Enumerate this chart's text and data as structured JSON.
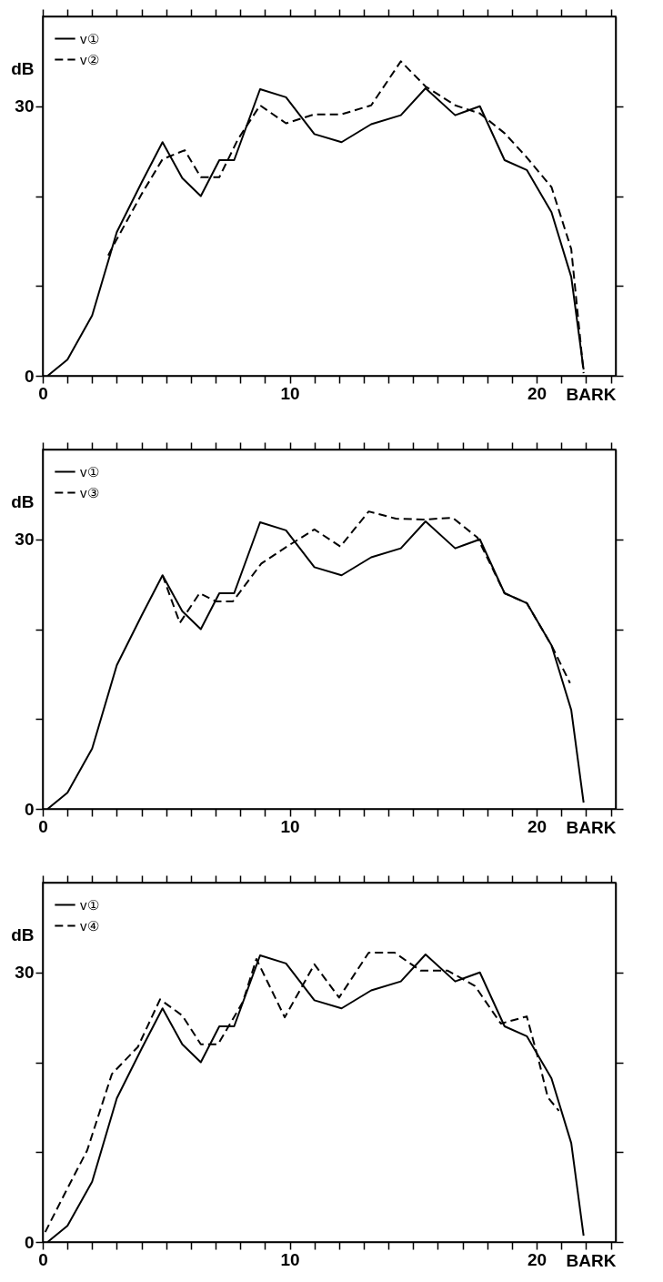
{
  "chart_data": [
    {
      "type": "line",
      "xlabel": "BARK",
      "ylabel": "dB",
      "xlim": [
        0,
        23.2
      ],
      "ylim": [
        0,
        40
      ],
      "xticks": [
        {
          "value": 0,
          "label": "0"
        },
        {
          "value": 1,
          "label": null
        },
        {
          "value": 2,
          "label": null
        },
        {
          "value": 3,
          "label": null
        },
        {
          "value": 4,
          "label": null
        },
        {
          "value": 5,
          "label": null
        },
        {
          "value": 6,
          "label": null
        },
        {
          "value": 7,
          "label": null
        },
        {
          "value": 8,
          "label": null
        },
        {
          "value": 9,
          "label": null
        },
        {
          "value": 10,
          "label": "10"
        },
        {
          "value": 11,
          "label": null
        },
        {
          "value": 12,
          "label": null
        },
        {
          "value": 13,
          "label": null
        },
        {
          "value": 14,
          "label": null
        },
        {
          "value": 15,
          "label": null
        },
        {
          "value": 16,
          "label": null
        },
        {
          "value": 17,
          "label": null
        },
        {
          "value": 18,
          "label": null
        },
        {
          "value": 19,
          "label": null
        },
        {
          "value": 20,
          "label": "20"
        },
        {
          "value": 21,
          "label": null
        },
        {
          "value": 22,
          "label": null
        },
        {
          "value": 23,
          "label": null
        }
      ],
      "yticks": [
        {
          "value": 0,
          "label": "0"
        },
        {
          "value": 10,
          "label": null
        },
        {
          "value": 20,
          "label": null
        },
        {
          "value": 30,
          "label": "30"
        }
      ],
      "legend": "top left",
      "grid": false,
      "series": [
        {
          "name": "v①",
          "color": "#000000",
          "line_style": "solid",
          "x": [
            0.2,
            1,
            2,
            3,
            4,
            4.85,
            5.65,
            6.4,
            7.15,
            7.75,
            8.8,
            9.85,
            11,
            12.1,
            13.3,
            14.5,
            15.5,
            16.7,
            17.7,
            18.7,
            19.6,
            20.6,
            21.4,
            21.9
          ],
          "values": [
            0,
            1.8,
            6.7,
            16,
            21.5,
            26,
            22,
            20,
            24,
            24,
            31.9,
            31,
            26.9,
            26,
            28,
            29,
            32,
            29,
            30,
            24,
            22.9,
            18.2,
            11,
            0.7
          ]
        },
        {
          "name": "v②",
          "color": "#000000",
          "line_style": "dashed",
          "x": [
            2.65,
            3,
            4,
            4.85,
            5.75,
            6.4,
            7.15,
            7.9,
            8.8,
            9.85,
            11,
            12.1,
            13.3,
            14.5,
            15.5,
            16.7,
            17.7,
            18.7,
            19.6,
            20.6,
            21.4,
            21.9
          ],
          "values": [
            13.4,
            15.2,
            20.2,
            24.1,
            25.1,
            22.1,
            22.1,
            26.3,
            30.1,
            28.1,
            29.1,
            29.1,
            30.1,
            35,
            32.2,
            30.1,
            29.2,
            27,
            24.3,
            21,
            14.1,
            0.3
          ]
        }
      ]
    },
    {
      "type": "line",
      "xlabel": "BARK",
      "ylabel": "dB",
      "xlim": [
        0,
        23.2
      ],
      "ylim": [
        0,
        40
      ],
      "xticks": [
        {
          "value": 0,
          "label": "0"
        },
        {
          "value": 1,
          "label": null
        },
        {
          "value": 2,
          "label": null
        },
        {
          "value": 3,
          "label": null
        },
        {
          "value": 4,
          "label": null
        },
        {
          "value": 5,
          "label": null
        },
        {
          "value": 6,
          "label": null
        },
        {
          "value": 7,
          "label": null
        },
        {
          "value": 8,
          "label": null
        },
        {
          "value": 9,
          "label": null
        },
        {
          "value": 10,
          "label": "10"
        },
        {
          "value": 11,
          "label": null
        },
        {
          "value": 12,
          "label": null
        },
        {
          "value": 13,
          "label": null
        },
        {
          "value": 14,
          "label": null
        },
        {
          "value": 15,
          "label": null
        },
        {
          "value": 16,
          "label": null
        },
        {
          "value": 17,
          "label": null
        },
        {
          "value": 18,
          "label": null
        },
        {
          "value": 19,
          "label": null
        },
        {
          "value": 20,
          "label": "20"
        },
        {
          "value": 21,
          "label": null
        },
        {
          "value": 22,
          "label": null
        },
        {
          "value": 23,
          "label": null
        }
      ],
      "yticks": [
        {
          "value": 0,
          "label": "0"
        },
        {
          "value": 10,
          "label": null
        },
        {
          "value": 20,
          "label": null
        },
        {
          "value": 30,
          "label": "30"
        }
      ],
      "legend": "top left",
      "grid": false,
      "series": [
        {
          "name": "v①",
          "color": "#000000",
          "line_style": "solid",
          "x": [
            0.2,
            1,
            2,
            3,
            4,
            4.85,
            5.65,
            6.4,
            7.15,
            7.75,
            8.8,
            9.85,
            11,
            12.1,
            13.3,
            14.5,
            15.5,
            16.7,
            17.7,
            18.7,
            19.6,
            20.6,
            21.4,
            21.9
          ],
          "values": [
            0,
            1.8,
            6.7,
            16,
            21.5,
            26,
            22,
            20,
            24,
            24,
            31.9,
            31,
            26.9,
            26,
            28,
            29,
            32,
            29,
            30,
            24,
            22.9,
            18.2,
            11,
            0.7
          ]
        },
        {
          "name": "v③",
          "color": "#000000",
          "line_style": "dashed",
          "x": [
            4.85,
            5.55,
            6.35,
            7,
            7.7,
            8.85,
            9.95,
            11,
            12.05,
            13.2,
            14.3,
            15.4,
            16.6,
            17.6,
            18.7,
            19.6,
            20.6,
            21.35
          ],
          "values": [
            26,
            20.7,
            24,
            23.1,
            23.1,
            27.3,
            29.3,
            31.1,
            29.2,
            33.1,
            32.3,
            32.2,
            32.4,
            30.2,
            24,
            22.9,
            18.2,
            14
          ]
        }
      ]
    },
    {
      "type": "line",
      "xlabel": "BARK",
      "ylabel": "dB",
      "xlim": [
        0,
        23.2
      ],
      "ylim": [
        0,
        40
      ],
      "xticks": [
        {
          "value": 0,
          "label": "0"
        },
        {
          "value": 1,
          "label": null
        },
        {
          "value": 2,
          "label": null
        },
        {
          "value": 3,
          "label": null
        },
        {
          "value": 4,
          "label": null
        },
        {
          "value": 5,
          "label": null
        },
        {
          "value": 6,
          "label": null
        },
        {
          "value": 7,
          "label": null
        },
        {
          "value": 8,
          "label": null
        },
        {
          "value": 9,
          "label": null
        },
        {
          "value": 10,
          "label": "10"
        },
        {
          "value": 11,
          "label": null
        },
        {
          "value": 12,
          "label": null
        },
        {
          "value": 13,
          "label": null
        },
        {
          "value": 14,
          "label": null
        },
        {
          "value": 15,
          "label": null
        },
        {
          "value": 16,
          "label": null
        },
        {
          "value": 17,
          "label": null
        },
        {
          "value": 18,
          "label": null
        },
        {
          "value": 19,
          "label": null
        },
        {
          "value": 20,
          "label": "20"
        },
        {
          "value": 21,
          "label": null
        },
        {
          "value": 22,
          "label": null
        },
        {
          "value": 23,
          "label": null
        }
      ],
      "yticks": [
        {
          "value": 0,
          "label": "0"
        },
        {
          "value": 10,
          "label": null
        },
        {
          "value": 20,
          "label": null
        },
        {
          "value": 30,
          "label": "30"
        }
      ],
      "legend": "top left",
      "grid": false,
      "series": [
        {
          "name": "v①",
          "color": "#000000",
          "line_style": "solid",
          "x": [
            0.2,
            1,
            2,
            3,
            4,
            4.85,
            5.65,
            6.4,
            7.15,
            7.75,
            8.8,
            9.85,
            11,
            12.1,
            13.3,
            14.5,
            15.5,
            16.7,
            17.7,
            18.7,
            19.6,
            20.6,
            21.4,
            21.9
          ],
          "values": [
            0,
            1.8,
            6.7,
            16,
            21.5,
            26,
            22,
            20,
            24,
            24,
            31.9,
            31,
            26.9,
            26,
            28,
            29,
            32,
            29,
            30,
            24,
            22.9,
            18.2,
            11,
            0.7
          ]
        },
        {
          "name": "v④",
          "color": "#000000",
          "line_style": "dashed",
          "x": [
            0.1,
            0.95,
            1.8,
            2.8,
            3.85,
            4.75,
            5.65,
            6.4,
            7.1,
            8.1,
            8.65,
            9.8,
            11,
            12,
            13.2,
            14.25,
            15.3,
            16.4,
            17.5,
            18.55,
            19.6,
            20.1,
            20.45,
            20.9
          ],
          "values": [
            1.1,
            5.7,
            10.2,
            18.7,
            21.7,
            27,
            25.2,
            22,
            22,
            26.7,
            31.5,
            25,
            30.9,
            27.2,
            32.2,
            32.2,
            30.2,
            30.2,
            28.5,
            24.3,
            25.1,
            20,
            16.1,
            14.6
          ]
        }
      ]
    }
  ]
}
